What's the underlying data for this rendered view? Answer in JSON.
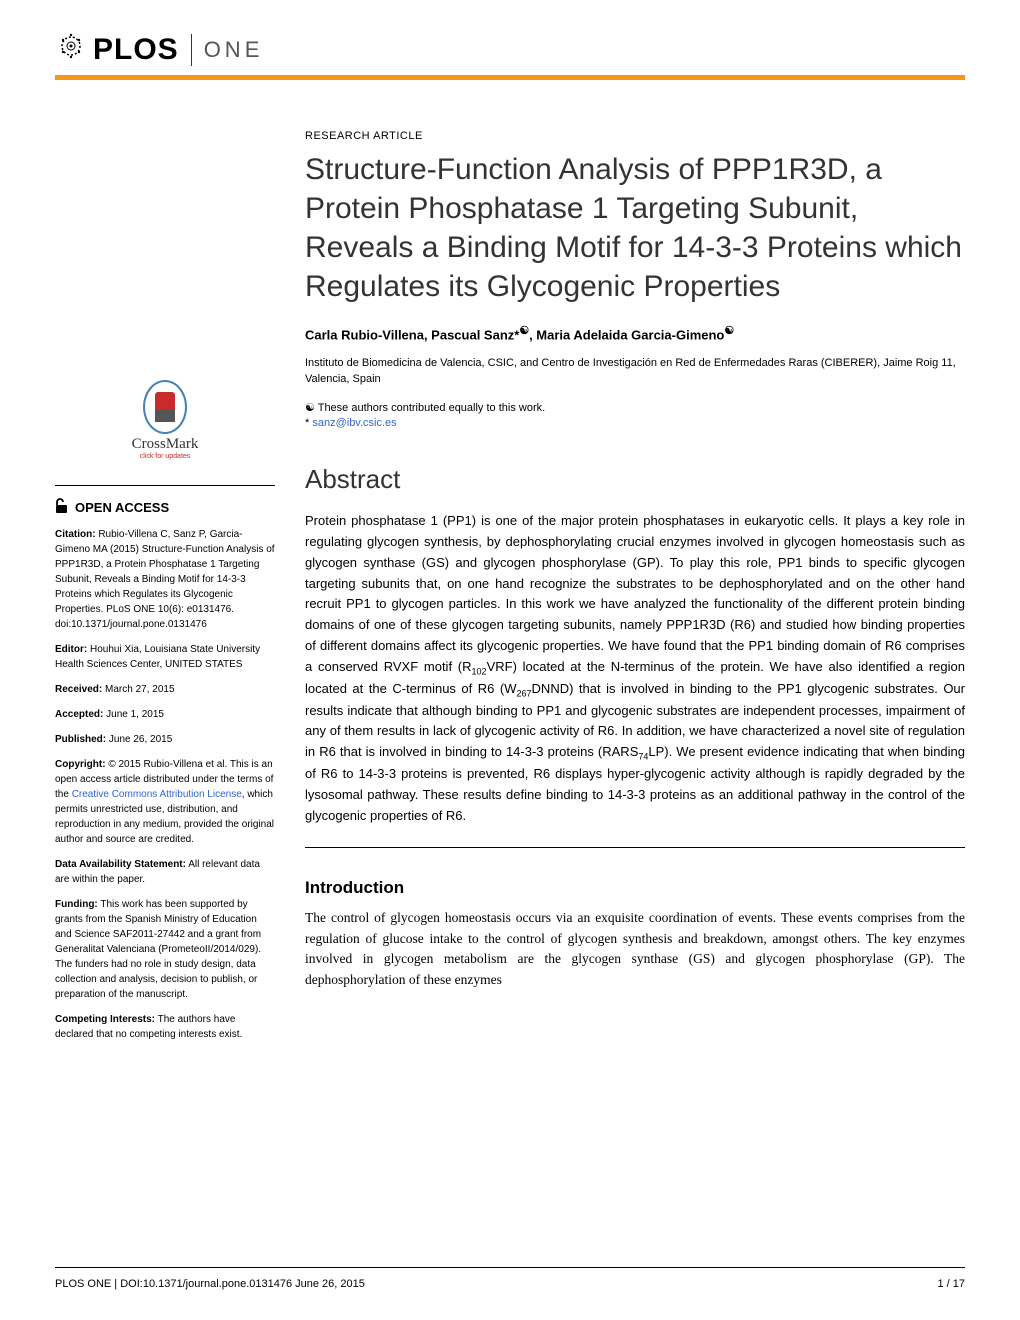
{
  "header": {
    "logo_text": "PLOS",
    "journal": "ONE"
  },
  "article": {
    "type": "RESEARCH ARTICLE",
    "title": "Structure-Function Analysis of PPP1R3D, a Protein Phosphatase 1 Targeting Subunit, Reveals a Binding Motif for 14-3-3 Proteins which Regulates its Glycogenic Properties",
    "authors_html": "Carla Rubio-Villena, Pascual Sanz*<sup>☯</sup>, Maria Adelaida Garcia-Gimeno<sup>☯</sup>",
    "affiliation": "Instituto de Biomedicina de Valencia, CSIC, and Centro de Investigación en Red de Enfermedades Raras (CIBERER), Jaime Roig 11, Valencia, Spain",
    "contribution_note": "☯ These authors contributed equally to this work.",
    "corresponding_prefix": "* ",
    "corresponding_email": "sanz@ibv.csic.es"
  },
  "crossmark": {
    "label": "CrossMark",
    "sublabel": "click for updates"
  },
  "sidebar": {
    "open_access": "OPEN ACCESS",
    "citation_label": "Citation:",
    "citation": " Rubio-Villena C, Sanz P, Garcia-Gimeno MA (2015) Structure-Function Analysis of PPP1R3D, a Protein Phosphatase 1 Targeting Subunit, Reveals a Binding Motif for 14-3-3 Proteins which Regulates its Glycogenic Properties. PLoS ONE 10(6): e0131476. doi:10.1371/journal.pone.0131476",
    "editor_label": "Editor:",
    "editor": " Houhui Xia, Louisiana State University Health Sciences Center, UNITED STATES",
    "received_label": "Received:",
    "received": " March 27, 2015",
    "accepted_label": "Accepted:",
    "accepted": " June 1, 2015",
    "published_label": "Published:",
    "published": " June 26, 2015",
    "copyright_label": "Copyright:",
    "copyright_pre": " © 2015 Rubio-Villena et al. This is an open access article distributed under the terms of the ",
    "copyright_link": "Creative Commons Attribution License",
    "copyright_post": ", which permits unrestricted use, distribution, and reproduction in any medium, provided the original author and source are credited.",
    "data_label": "Data Availability Statement:",
    "data": " All relevant data are within the paper.",
    "funding_label": "Funding:",
    "funding": " This work has been supported by grants from the Spanish Ministry of Education and Science SAF2011-27442 and a grant from Generalitat Valenciana (PrometeoII/2014/029). The funders had no role in study design, data collection and analysis, decision to publish, or preparation of the manuscript.",
    "competing_label": "Competing Interests:",
    "competing": " The authors have declared that no competing interests exist."
  },
  "abstract": {
    "heading": "Abstract",
    "text_html": "Protein phosphatase 1 (PP1) is one of the major protein phosphatases in eukaryotic cells. It plays a key role in regulating glycogen synthesis, by dephosphorylating crucial enzymes involved in glycogen homeostasis such as glycogen synthase (GS) and glycogen phosphorylase (GP). To play this role, PP1 binds to specific glycogen targeting subunits that, on one hand recognize the substrates to be dephosphorylated and on the other hand recruit PP1 to glycogen particles. In this work we have analyzed the functionality of the different protein binding domains of one of these glycogen targeting subunits, namely PPP1R3D (R6) and studied how binding properties of different domains affect its glycogenic properties. We have found that the PP1 binding domain of R6 comprises a conserved RVXF motif (R<sub>102</sub>VRF) located at the N-terminus of the protein. We have also identified a region located at the C-terminus of R6 (W<sub>267</sub>DNND) that is involved in binding to the PP1 glycogenic substrates. Our results indicate that although binding to PP1 and glycogenic substrates are independent processes, impairment of any of them results in lack of glycogenic activity of R6. In addition, we have characterized a novel site of regulation in R6 that is involved in binding to 14-3-3 proteins (RARS<sub>74</sub>LP). We present evidence indicating that when binding of R6 to 14-3-3 proteins is prevented, R6 displays hyper-glycogenic activity although is rapidly degraded by the lysosomal pathway. These results define binding to 14-3-3 proteins as an additional pathway in the control of the glycogenic properties of R6."
  },
  "intro": {
    "heading": "Introduction",
    "text": "The control of glycogen homeostasis occurs via an exquisite coordination of events. These events comprises from the regulation of glucose intake to the control of glycogen synthesis and breakdown, amongst others. The key enzymes involved in glycogen metabolism are the glycogen synthase (GS) and glycogen phosphorylase (GP). The dephosphorylation of these enzymes"
  },
  "footer": {
    "left": "PLOS ONE | DOI:10.1371/journal.pone.0131476    June 26, 2015",
    "right": "1 / 17"
  }
}
